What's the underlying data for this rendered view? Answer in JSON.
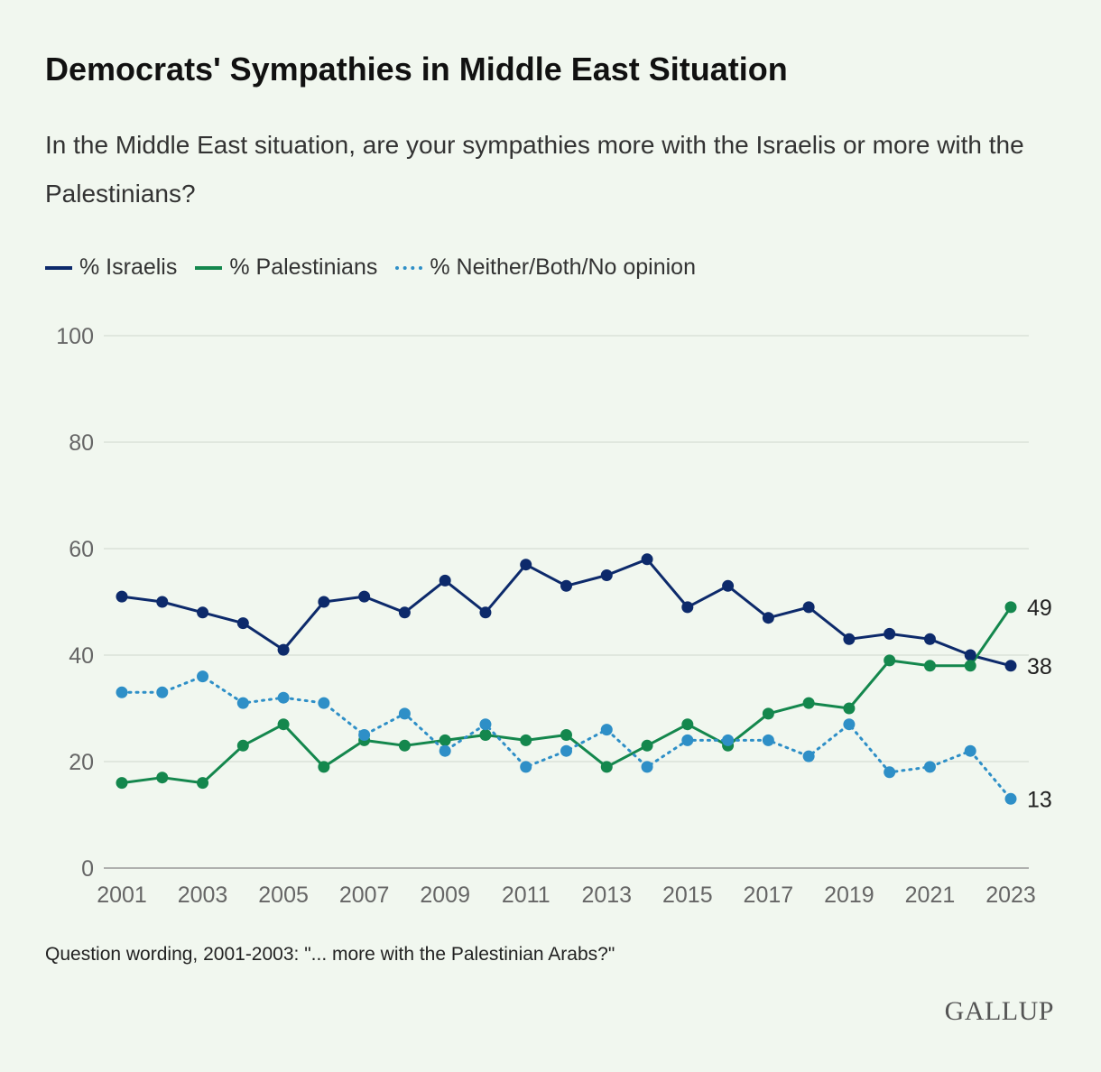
{
  "title": "Democrats' Sympathies in Middle East Situation",
  "subtitle": "In the Middle East situation, are your sympathies more with the Israelis or more with the Palestinians?",
  "note": "Question wording, 2001-2003: \"... more with the Palestinian Arabs?\"",
  "logo": "GALLUP",
  "chart_data": {
    "type": "line",
    "title": "Democrats' Sympathies in Middle East Situation",
    "xlabel": "",
    "ylabel": "",
    "ylim": [
      0,
      100
    ],
    "yticks": [
      "0",
      "20",
      "40",
      "60",
      "80",
      "100"
    ],
    "xticks": [
      "2001",
      "2003",
      "2005",
      "2007",
      "2009",
      "2011",
      "2013",
      "2015",
      "2017",
      "2019",
      "2021",
      "2023"
    ],
    "grid": true,
    "legend_placement": "top-left",
    "x": [
      2001,
      2002,
      2003,
      2004,
      2005,
      2006,
      2007,
      2008,
      2009,
      2010,
      2011,
      2012,
      2013,
      2014,
      2015,
      2016,
      2017,
      2018,
      2019,
      2020,
      2021,
      2022,
      2023
    ],
    "series": [
      {
        "name": "% Israelis",
        "color": "#0d2a6b",
        "style": "solid",
        "values": [
          51,
          50,
          48,
          46,
          41,
          50,
          51,
          48,
          54,
          48,
          57,
          53,
          55,
          58,
          49,
          53,
          47,
          49,
          43,
          44,
          43,
          40,
          38
        ],
        "end_label": "38"
      },
      {
        "name": "% Palestinians",
        "color": "#14874d",
        "style": "solid",
        "values": [
          16,
          17,
          16,
          23,
          27,
          19,
          24,
          23,
          24,
          25,
          24,
          25,
          19,
          23,
          27,
          23,
          29,
          31,
          30,
          39,
          38,
          38,
          49
        ],
        "end_label": "49"
      },
      {
        "name": "% Neither/Both/No opinion",
        "color": "#2e8fc7",
        "style": "dotted",
        "values": [
          33,
          33,
          36,
          31,
          32,
          31,
          25,
          29,
          22,
          27,
          19,
          22,
          26,
          19,
          24,
          24,
          24,
          21,
          27,
          18,
          19,
          22,
          13
        ],
        "end_label": "13"
      }
    ]
  }
}
